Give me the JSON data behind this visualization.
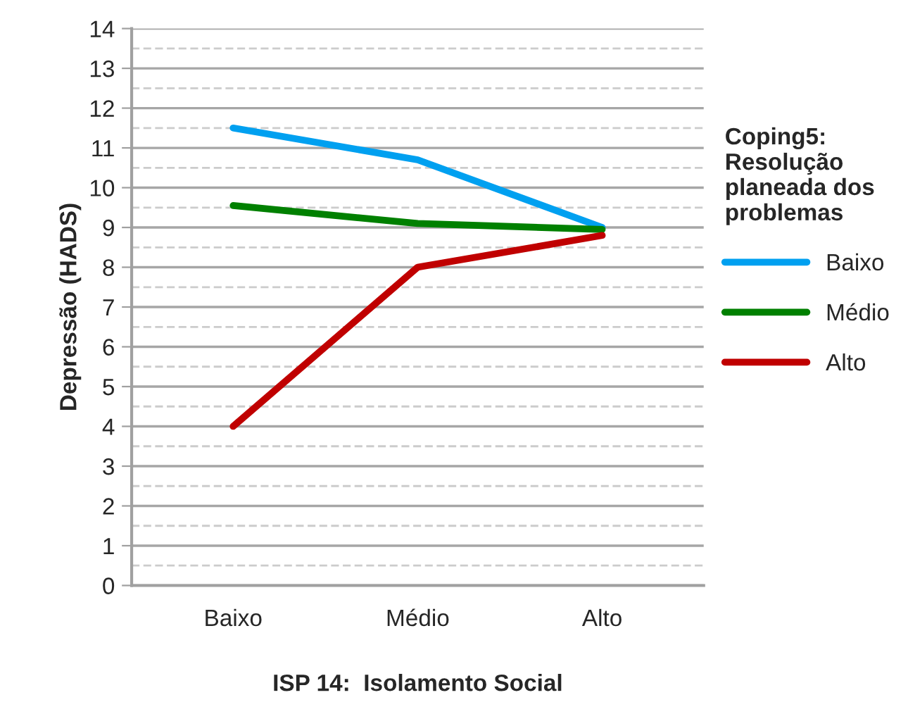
{
  "chart_data": {
    "type": "line",
    "xlabel": "ISP 14:  Isolamento Social",
    "ylabel": "Depressão (HADS)",
    "legend_title": "Coping5:\nResolução\nplaneada dos\nproblemas",
    "categories": [
      "Baixo",
      "Médio",
      "Alto"
    ],
    "series": [
      {
        "name": "Baixo",
        "color": "#00a0f0",
        "values": [
          11.5,
          10.7,
          9.0
        ]
      },
      {
        "name": "Médio",
        "color": "#008000",
        "values": [
          9.55,
          9.1,
          8.95
        ]
      },
      {
        "name": "Alto",
        "color": "#c00000",
        "values": [
          4.0,
          8.0,
          8.8
        ]
      }
    ],
    "ylim": [
      0,
      14
    ],
    "yticks": [
      0,
      {
        "value": 0.5,
        "label": null
      },
      1,
      {
        "value": 1.5,
        "label": null
      },
      2,
      {
        "value": 2.5,
        "label": null
      },
      3,
      {
        "value": 3.5,
        "label": null
      },
      4,
      {
        "value": 4.5,
        "label": null
      },
      5,
      {
        "value": 5.5,
        "label": null
      },
      6,
      {
        "value": 6.5,
        "label": null
      },
      7,
      {
        "value": 7.5,
        "label": null
      },
      8,
      {
        "value": 8.5,
        "label": null
      },
      9,
      {
        "value": 9.5,
        "label": null
      },
      10,
      {
        "value": 10.5,
        "label": null
      },
      11,
      {
        "value": 11.5,
        "label": null
      },
      12,
      {
        "value": 12.5,
        "label": null
      },
      13,
      {
        "value": 13.5,
        "label": null
      },
      14
    ],
    "grid": "y",
    "legend": "right",
    "marker": "none",
    "line_style": "solid"
  }
}
